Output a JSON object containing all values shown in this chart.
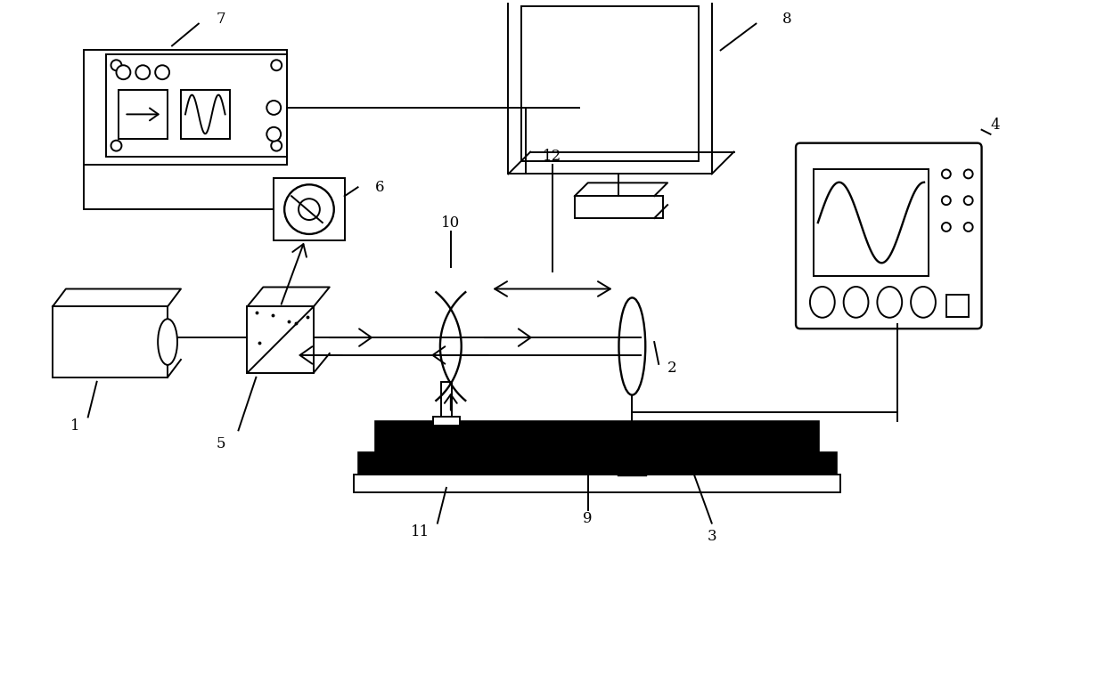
{
  "background_color": "#ffffff",
  "line_color": "#000000",
  "fig_w": 12.4,
  "fig_h": 7.84,
  "dpi": 100
}
